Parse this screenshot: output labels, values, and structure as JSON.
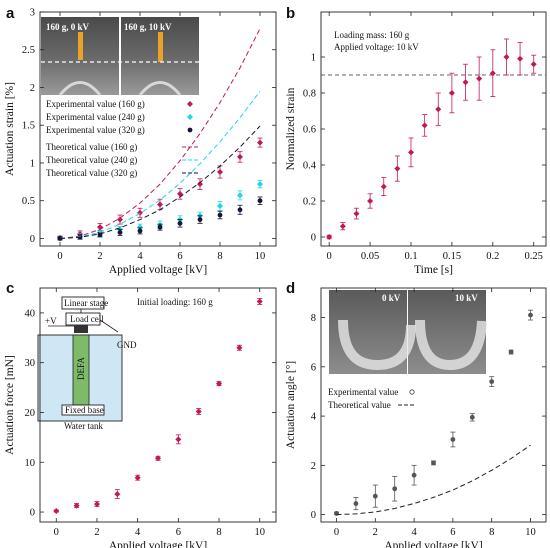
{
  "chart_data": [
    {
      "panel": "a",
      "type": "scatter",
      "xlabel": "Applied voltage [kV]",
      "ylabel": "Actuation strain [%]",
      "xlim": [
        -1,
        10.8
      ],
      "ylim": [
        -0.1,
        3
      ],
      "xticks": [
        0,
        2,
        4,
        6,
        8,
        10
      ],
      "yticks": [
        0,
        0.5,
        1,
        1.5,
        2,
        2.5,
        3
      ],
      "ytick_labels": [
        "0",
        "0.5",
        "1",
        "1.5",
        "2",
        "2.5",
        "3"
      ],
      "legend_position": "center-left",
      "inset_labels": [
        "160 g, 0 kV",
        "160 g, 10 kV"
      ],
      "series": [
        {
          "name": "Experimental value (160 g)",
          "color": "#c2185b",
          "marker": "diamond",
          "x": [
            0,
            1,
            2,
            3,
            4,
            5,
            6,
            7,
            8,
            9,
            10
          ],
          "y": [
            0.01,
            0.06,
            0.15,
            0.25,
            0.34,
            0.45,
            0.59,
            0.72,
            0.88,
            1.08,
            1.27
          ],
          "err": [
            0.02,
            0.04,
            0.05,
            0.06,
            0.06,
            0.07,
            0.07,
            0.07,
            0.08,
            0.07,
            0.06
          ]
        },
        {
          "name": "Experimental value (240 g)",
          "color": "#1fd6e6",
          "marker": "diamond",
          "x": [
            0,
            1,
            2,
            3,
            4,
            5,
            6,
            7,
            8,
            9,
            10
          ],
          "y": [
            0.0,
            0.03,
            0.07,
            0.12,
            0.15,
            0.18,
            0.25,
            0.3,
            0.43,
            0.57,
            0.72
          ],
          "err": [
            0.02,
            0.03,
            0.04,
            0.04,
            0.04,
            0.05,
            0.05,
            0.05,
            0.06,
            0.06,
            0.05
          ]
        },
        {
          "name": "Experimental value (320 g)",
          "color": "#151535",
          "marker": "circle",
          "x": [
            0,
            1,
            2,
            3,
            4,
            5,
            6,
            7,
            8,
            9,
            10
          ],
          "y": [
            0.0,
            0.02,
            0.05,
            0.08,
            0.1,
            0.15,
            0.2,
            0.25,
            0.31,
            0.38,
            0.5
          ],
          "err": [
            0.02,
            0.03,
            0.03,
            0.04,
            0.04,
            0.04,
            0.05,
            0.05,
            0.05,
            0.06,
            0.05
          ]
        },
        {
          "name": "Theoretical value (160 g)",
          "color": "#c2185b",
          "line": "dashed",
          "x": [
            0,
            1,
            2,
            3,
            4,
            5,
            6,
            7,
            8,
            9,
            10
          ],
          "y": [
            0,
            0.03,
            0.12,
            0.27,
            0.47,
            0.72,
            1.03,
            1.39,
            1.8,
            2.26,
            2.78
          ]
        },
        {
          "name": "Theoretical value (240 g)",
          "color": "#1fd6e6",
          "line": "dashed",
          "x": [
            0,
            1,
            2,
            3,
            4,
            5,
            6,
            7,
            8,
            9,
            10
          ],
          "y": [
            0,
            0.02,
            0.08,
            0.19,
            0.33,
            0.51,
            0.73,
            0.99,
            1.28,
            1.6,
            1.95
          ]
        },
        {
          "name": "Theoretical value (320 g)",
          "color": "#151535",
          "line": "dashed",
          "x": [
            0,
            1,
            2,
            3,
            4,
            5,
            6,
            7,
            8,
            9,
            10
          ],
          "y": [
            0,
            0.015,
            0.06,
            0.14,
            0.25,
            0.38,
            0.55,
            0.74,
            0.96,
            1.21,
            1.49
          ]
        }
      ]
    },
    {
      "panel": "b",
      "type": "scatter",
      "xlabel": "Time [s]",
      "ylabel": "Normalized strain",
      "xlim": [
        -0.01,
        0.265
      ],
      "ylim": [
        -0.05,
        1.25
      ],
      "xticks": [
        0,
        0.05,
        0.1,
        0.15,
        0.2,
        0.25
      ],
      "xtick_labels": [
        "0",
        "0.05",
        "0.1",
        "0.15",
        "0.2",
        "0.25"
      ],
      "yticks": [
        0,
        0.2,
        0.4,
        0.6,
        0.8,
        1
      ],
      "ytick_labels": [
        "0",
        "0.2",
        "0.4",
        "0.6",
        "0.8",
        "1"
      ],
      "annotations": [
        "Loading mass: 160 g",
        "Applied voltage: 10 kV"
      ],
      "reference_line_y": 0.9,
      "series": [
        {
          "color": "#c2185b",
          "marker": "diamond",
          "x": [
            0,
            0.0167,
            0.0333,
            0.05,
            0.0667,
            0.0833,
            0.1,
            0.1167,
            0.1333,
            0.15,
            0.1667,
            0.1833,
            0.2,
            0.2167,
            0.2333,
            0.25
          ],
          "y": [
            0,
            0.06,
            0.13,
            0.2,
            0.28,
            0.38,
            0.47,
            0.62,
            0.71,
            0.8,
            0.86,
            0.88,
            0.91,
            1.0,
            0.99,
            0.96
          ],
          "err": [
            0.01,
            0.02,
            0.03,
            0.04,
            0.05,
            0.07,
            0.08,
            0.06,
            0.09,
            0.11,
            0.1,
            0.12,
            0.13,
            0.1,
            0.09,
            0.05
          ]
        }
      ]
    },
    {
      "panel": "c",
      "type": "scatter",
      "xlabel": "Applied voltage [kV]",
      "ylabel": "Actuation force [mN]",
      "xlim": [
        -0.8,
        10.8
      ],
      "ylim": [
        -2,
        45
      ],
      "xticks": [
        0,
        2,
        4,
        6,
        8,
        10
      ],
      "yticks": [
        0,
        10,
        20,
        30,
        40
      ],
      "annotations": [
        "Initial loading: 160 g"
      ],
      "schematic_labels": [
        "Linear stage",
        "Load cell",
        "+V",
        "GND",
        "DEFA",
        "Fixed base",
        "Water tank"
      ],
      "series": [
        {
          "color": "#c2185b",
          "marker": "diamond",
          "x": [
            0,
            1,
            2,
            3,
            4,
            5,
            6,
            7,
            8,
            9,
            10
          ],
          "y": [
            0.2,
            1.3,
            1.6,
            3.6,
            6.9,
            10.8,
            14.6,
            20.2,
            25.8,
            33.0,
            42.3
          ],
          "err": [
            0.2,
            0.4,
            0.5,
            0.9,
            0.5,
            0.4,
            0.9,
            0.6,
            0.4,
            0.5,
            0.6
          ]
        }
      ]
    },
    {
      "panel": "d",
      "type": "scatter",
      "xlabel": "Applied voltage [kV]",
      "ylabel": "Actuation angle [°]",
      "xlim": [
        -0.8,
        10.8
      ],
      "ylim": [
        -0.3,
        9.2
      ],
      "xticks": [
        0,
        2,
        4,
        6,
        8,
        10
      ],
      "yticks": [
        0,
        2,
        4,
        6,
        8
      ],
      "inset_labels": [
        "0 kV",
        "10 kV"
      ],
      "legend_position": "center-left",
      "series": [
        {
          "name": "Experimental value",
          "color": "#555555",
          "marker": "circle",
          "x": [
            0,
            1,
            2,
            3,
            4,
            5,
            6,
            7,
            8,
            9,
            10
          ],
          "y": [
            0.05,
            0.45,
            0.75,
            1.05,
            1.6,
            2.1,
            3.05,
            3.95,
            5.4,
            6.6,
            8.1
          ],
          "err": [
            0.05,
            0.25,
            0.45,
            0.5,
            0.4,
            0.08,
            0.3,
            0.15,
            0.2,
            0.08,
            0.2
          ]
        },
        {
          "name": "Theoretical value",
          "color": "#222222",
          "line": "dashed",
          "x": [
            0,
            1,
            2,
            3,
            4,
            5,
            6,
            7,
            8,
            9,
            10
          ],
          "y": [
            0,
            0.03,
            0.11,
            0.25,
            0.45,
            0.7,
            1.0,
            1.37,
            1.8,
            2.28,
            2.82
          ]
        }
      ]
    }
  ]
}
